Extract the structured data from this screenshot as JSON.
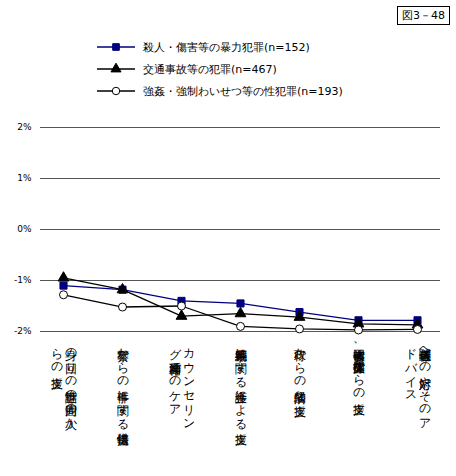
{
  "chart_data": {
    "type": "line",
    "title": "図3－48",
    "categories": [
      "身の回りの世話等の周囲の人からの支援",
      "警察からの事件に関する情報提供",
      "カウンセリング等精神面でのケア",
      "裁判手続等に関する弁護士による支援",
      "行政からの経済的な支援",
      "被害者団体、支援団体等からの支援",
      "報道関係者への対応やそのアドバイス"
    ],
    "series": [
      {
        "name": "殺人・傷害等の暴力犯罪(n=152)",
        "color": "#000080",
        "marker": "square",
        "values": [
          -1.1,
          -1.18,
          -1.4,
          -1.45,
          -1.62,
          -1.78,
          -1.78
        ]
      },
      {
        "name": "交通事故等の犯罪(n=467)",
        "color": "#000000",
        "marker": "triangle",
        "values": [
          -0.95,
          -1.18,
          -1.7,
          -1.65,
          -1.72,
          -1.85,
          -1.87
        ]
      },
      {
        "name": "強姦・強制わいせつ等の性犯罪(n=193)",
        "color": "#000000",
        "marker": "circle-open",
        "values": [
          -1.28,
          -1.52,
          -1.5,
          -1.9,
          -1.95,
          -1.97,
          -1.96
        ]
      }
    ],
    "ylim": [
      -2,
      2
    ],
    "yticks": [
      {
        "value": 2,
        "label": "2%"
      },
      {
        "value": 1,
        "label": "1%"
      },
      {
        "value": 0,
        "label": "0%"
      },
      {
        "value": -1,
        "label": "-1%"
      },
      {
        "value": -2,
        "label": "-2%"
      }
    ],
    "grid": true,
    "legend": "top-left"
  }
}
